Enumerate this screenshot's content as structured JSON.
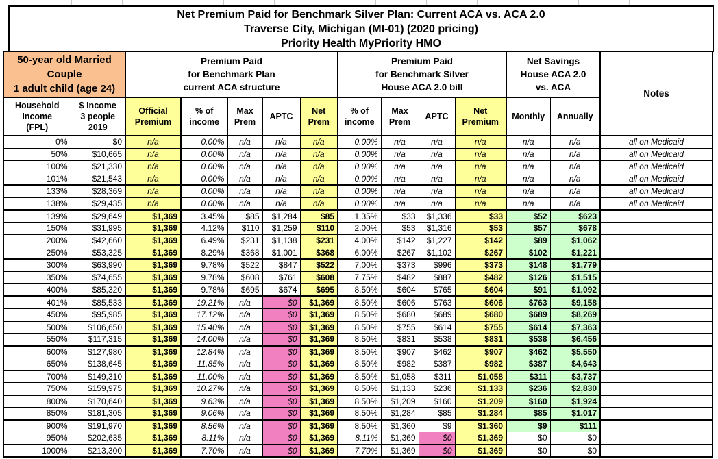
{
  "title": {
    "line1": "Net Premium Paid for Benchmark Silver Plan: Current ACA vs. ACA 2.0",
    "line2": "Traverse City, Michigan (MI-01) (2020 pricing)",
    "line3": "Priority Health MyPriority HMO"
  },
  "header": {
    "household": "50-year old Married Couple\n1 adult child (age 24)",
    "group_aca": "Premium Paid\nfor Benchmark Plan\ncurrent ACA structure",
    "group_aca2": "Premium Paid\nfor Benchmark Silver\nHouse ACA 2.0 bill",
    "group_savings": "Net Savings\nHouse ACA 2.0\nvs. ACA",
    "notes": "Notes"
  },
  "columns": [
    "Household\nIncome\n(FPL)",
    "$ Income\n3 people\n2019",
    "Official\nPremium",
    "% of\nincome",
    "Max\nPrem",
    "APTC",
    "Net\nPrem",
    "% of\nincome",
    "Max\nPrem",
    "APTC",
    "Net\nPremium",
    "Monthly",
    "Annually"
  ],
  "colors": {
    "orange": "#FAC090",
    "yellow": "#FFFF99",
    "pink": "#F080C0",
    "green": "#CCFFCC"
  },
  "rows": [
    {
      "band": "medicaid",
      "fpl": "0%",
      "income": "$0",
      "official": "n/a",
      "aca_pct": "0.00%",
      "aca_max": "n/a",
      "aca_aptc": "n/a",
      "aca_net": "n/a",
      "aca2_pct": "0.00%",
      "aca2_max": "n/a",
      "aca2_aptc": "n/a",
      "aca2_net": "n/a",
      "monthly": "n/a",
      "annually": "n/a",
      "notes": "all on Medicaid"
    },
    {
      "band": "medicaid",
      "fpl": "50%",
      "income": "$10,665",
      "official": "n/a",
      "aca_pct": "0.00%",
      "aca_max": "n/a",
      "aca_aptc": "n/a",
      "aca_net": "n/a",
      "aca2_pct": "0.00%",
      "aca2_max": "n/a",
      "aca2_aptc": "n/a",
      "aca2_net": "n/a",
      "monthly": "n/a",
      "annually": "n/a",
      "notes": "all on Medicaid"
    },
    {
      "band": "medicaid",
      "fpl": "100%",
      "income": "$21,330",
      "official": "n/a",
      "aca_pct": "0.00%",
      "aca_max": "n/a",
      "aca_aptc": "n/a",
      "aca_net": "n/a",
      "aca2_pct": "0.00%",
      "aca2_max": "n/a",
      "aca2_aptc": "n/a",
      "aca2_net": "n/a",
      "monthly": "n/a",
      "annually": "n/a",
      "notes": "all on Medicaid"
    },
    {
      "band": "medicaid",
      "fpl": "101%",
      "income": "$21,543",
      "official": "n/a",
      "aca_pct": "0.00%",
      "aca_max": "n/a",
      "aca_aptc": "n/a",
      "aca_net": "n/a",
      "aca2_pct": "0.00%",
      "aca2_max": "n/a",
      "aca2_aptc": "n/a",
      "aca2_net": "n/a",
      "monthly": "n/a",
      "annually": "n/a",
      "notes": "all on Medicaid"
    },
    {
      "band": "medicaid",
      "fpl": "133%",
      "income": "$28,369",
      "official": "n/a",
      "aca_pct": "0.00%",
      "aca_max": "n/a",
      "aca_aptc": "n/a",
      "aca_net": "n/a",
      "aca2_pct": "0.00%",
      "aca2_max": "n/a",
      "aca2_aptc": "n/a",
      "aca2_net": "n/a",
      "monthly": "n/a",
      "annually": "n/a",
      "notes": "all on Medicaid"
    },
    {
      "band": "medicaid",
      "fpl": "138%",
      "income": "$29,435",
      "official": "n/a",
      "aca_pct": "0.00%",
      "aca_max": "n/a",
      "aca_aptc": "n/a",
      "aca_net": "n/a",
      "aca2_pct": "0.00%",
      "aca2_max": "n/a",
      "aca2_aptc": "n/a",
      "aca2_net": "n/a",
      "monthly": "n/a",
      "annually": "n/a",
      "notes": "all on Medicaid"
    },
    {
      "band": "subsidized",
      "fpl": "139%",
      "income": "$29,649",
      "official": "$1,369",
      "aca_pct": "3.45%",
      "aca_max": "$85",
      "aca_aptc": "$1,284",
      "aca_net": "$85",
      "aca2_pct": "1.35%",
      "aca2_max": "$33",
      "aca2_aptc": "$1,336",
      "aca2_net": "$33",
      "monthly": "$52",
      "annually": "$623",
      "notes": ""
    },
    {
      "band": "subsidized",
      "fpl": "150%",
      "income": "$31,995",
      "official": "$1,369",
      "aca_pct": "4.12%",
      "aca_max": "$110",
      "aca_aptc": "$1,259",
      "aca_net": "$110",
      "aca2_pct": "2.00%",
      "aca2_max": "$53",
      "aca2_aptc": "$1,316",
      "aca2_net": "$53",
      "monthly": "$57",
      "annually": "$678",
      "notes": ""
    },
    {
      "band": "subsidized",
      "fpl": "200%",
      "income": "$42,660",
      "official": "$1,369",
      "aca_pct": "6.49%",
      "aca_max": "$231",
      "aca_aptc": "$1,138",
      "aca_net": "$231",
      "aca2_pct": "4.00%",
      "aca2_max": "$142",
      "aca2_aptc": "$1,227",
      "aca2_net": "$142",
      "monthly": "$89",
      "annually": "$1,062",
      "notes": ""
    },
    {
      "band": "subsidized",
      "fpl": "250%",
      "income": "$53,325",
      "official": "$1,369",
      "aca_pct": "8.29%",
      "aca_max": "$368",
      "aca_aptc": "$1,001",
      "aca_net": "$368",
      "aca2_pct": "6.00%",
      "aca2_max": "$267",
      "aca2_aptc": "$1,102",
      "aca2_net": "$267",
      "monthly": "$102",
      "annually": "$1,221",
      "notes": ""
    },
    {
      "band": "subsidized",
      "fpl": "300%",
      "income": "$63,990",
      "official": "$1,369",
      "aca_pct": "9.78%",
      "aca_max": "$522",
      "aca_aptc": "$847",
      "aca_net": "$522",
      "aca2_pct": "7.00%",
      "aca2_max": "$373",
      "aca2_aptc": "$996",
      "aca2_net": "$373",
      "monthly": "$148",
      "annually": "$1,779",
      "notes": ""
    },
    {
      "band": "subsidized",
      "fpl": "350%",
      "income": "$74,655",
      "official": "$1,369",
      "aca_pct": "9.78%",
      "aca_max": "$608",
      "aca_aptc": "$761",
      "aca_net": "$608",
      "aca2_pct": "7.75%",
      "aca2_max": "$482",
      "aca2_aptc": "$887",
      "aca2_net": "$482",
      "monthly": "$126",
      "annually": "$1,515",
      "notes": ""
    },
    {
      "band": "subsidized",
      "fpl": "400%",
      "income": "$85,320",
      "official": "$1,369",
      "aca_pct": "9.78%",
      "aca_max": "$695",
      "aca_aptc": "$674",
      "aca_net": "$695",
      "aca2_pct": "8.50%",
      "aca2_max": "$604",
      "aca2_aptc": "$765",
      "aca2_net": "$604",
      "monthly": "$91",
      "annually": "$1,092",
      "notes": ""
    },
    {
      "band": "cliff",
      "fpl": "401%",
      "income": "$85,533",
      "official": "$1,369",
      "aca_pct": "19.21%",
      "aca_max": "n/a",
      "aca_aptc": "$0",
      "aca_net": "$1,369",
      "aca2_pct": "8.50%",
      "aca2_max": "$606",
      "aca2_aptc": "$763",
      "aca2_net": "$606",
      "monthly": "$763",
      "annually": "$9,158",
      "notes": ""
    },
    {
      "band": "cliff",
      "fpl": "450%",
      "income": "$95,985",
      "official": "$1,369",
      "aca_pct": "17.12%",
      "aca_max": "n/a",
      "aca_aptc": "$0",
      "aca_net": "$1,369",
      "aca2_pct": "8.50%",
      "aca2_max": "$680",
      "aca2_aptc": "$689",
      "aca2_net": "$680",
      "monthly": "$689",
      "annually": "$8,269",
      "notes": ""
    },
    {
      "band": "cliff",
      "fpl": "500%",
      "income": "$106,650",
      "official": "$1,369",
      "aca_pct": "15.40%",
      "aca_max": "n/a",
      "aca_aptc": "$0",
      "aca_net": "$1,369",
      "aca2_pct": "8.50%",
      "aca2_max": "$755",
      "aca2_aptc": "$614",
      "aca2_net": "$755",
      "monthly": "$614",
      "annually": "$7,363",
      "notes": ""
    },
    {
      "band": "cliff",
      "fpl": "550%",
      "income": "$117,315",
      "official": "$1,369",
      "aca_pct": "14.00%",
      "aca_max": "n/a",
      "aca_aptc": "$0",
      "aca_net": "$1,369",
      "aca2_pct": "8.50%",
      "aca2_max": "$831",
      "aca2_aptc": "$538",
      "aca2_net": "$831",
      "monthly": "$538",
      "annually": "$6,456",
      "notes": ""
    },
    {
      "band": "cliff",
      "fpl": "600%",
      "income": "$127,980",
      "official": "$1,369",
      "aca_pct": "12.84%",
      "aca_max": "n/a",
      "aca_aptc": "$0",
      "aca_net": "$1,369",
      "aca2_pct": "8.50%",
      "aca2_max": "$907",
      "aca2_aptc": "$462",
      "aca2_net": "$907",
      "monthly": "$462",
      "annually": "$5,550",
      "notes": ""
    },
    {
      "band": "cliff",
      "fpl": "650%",
      "income": "$138,645",
      "official": "$1,369",
      "aca_pct": "11.85%",
      "aca_max": "n/a",
      "aca_aptc": "$0",
      "aca_net": "$1,369",
      "aca2_pct": "8.50%",
      "aca2_max": "$982",
      "aca2_aptc": "$387",
      "aca2_net": "$982",
      "monthly": "$387",
      "annually": "$4,643",
      "notes": ""
    },
    {
      "band": "cliff",
      "fpl": "700%",
      "income": "$149,310",
      "official": "$1,369",
      "aca_pct": "11.00%",
      "aca_max": "n/a",
      "aca_aptc": "$0",
      "aca_net": "$1,369",
      "aca2_pct": "8.50%",
      "aca2_max": "$1,058",
      "aca2_aptc": "$311",
      "aca2_net": "$1,058",
      "monthly": "$311",
      "annually": "$3,737",
      "notes": ""
    },
    {
      "band": "cliff",
      "fpl": "750%",
      "income": "$159,975",
      "official": "$1,369",
      "aca_pct": "10.27%",
      "aca_max": "n/a",
      "aca_aptc": "$0",
      "aca_net": "$1,369",
      "aca2_pct": "8.50%",
      "aca2_max": "$1,133",
      "aca2_aptc": "$236",
      "aca2_net": "$1,133",
      "monthly": "$236",
      "annually": "$2,830",
      "notes": ""
    },
    {
      "band": "cliff",
      "fpl": "800%",
      "income": "$170,640",
      "official": "$1,369",
      "aca_pct": "9.63%",
      "aca_max": "n/a",
      "aca_aptc": "$0",
      "aca_net": "$1,369",
      "aca2_pct": "8.50%",
      "aca2_max": "$1,209",
      "aca2_aptc": "$160",
      "aca2_net": "$1,209",
      "monthly": "$160",
      "annually": "$1,924",
      "notes": ""
    },
    {
      "band": "cliff",
      "fpl": "850%",
      "income": "$181,305",
      "official": "$1,369",
      "aca_pct": "9.06%",
      "aca_max": "n/a",
      "aca_aptc": "$0",
      "aca_net": "$1,369",
      "aca2_pct": "8.50%",
      "aca2_max": "$1,284",
      "aca2_aptc": "$85",
      "aca2_net": "$1,284",
      "monthly": "$85",
      "annually": "$1,017",
      "notes": ""
    },
    {
      "band": "cliff",
      "fpl": "900%",
      "income": "$191,970",
      "official": "$1,369",
      "aca_pct": "8.56%",
      "aca_max": "n/a",
      "aca_aptc": "$0",
      "aca_net": "$1,369",
      "aca2_pct": "8.50%",
      "aca2_max": "$1,360",
      "aca2_aptc": "$9",
      "aca2_net": "$1,360",
      "monthly": "$9",
      "annually": "$111",
      "notes": ""
    },
    {
      "band": "overcap",
      "fpl": "950%",
      "income": "$202,635",
      "official": "$1,369",
      "aca_pct": "8.11%",
      "aca_max": "n/a",
      "aca_aptc": "$0",
      "aca_net": "$1,369",
      "aca2_pct": "8.11%",
      "aca2_max": "$1,369",
      "aca2_aptc": "$0",
      "aca2_net": "$1,369",
      "monthly": "$0",
      "annually": "$0",
      "notes": ""
    },
    {
      "band": "overcap",
      "fpl": "1000%",
      "income": "$213,300",
      "official": "$1,369",
      "aca_pct": "7.70%",
      "aca_max": "n/a",
      "aca_aptc": "$0",
      "aca_net": "$1,369",
      "aca2_pct": "7.70%",
      "aca2_max": "$1,369",
      "aca2_aptc": "$0",
      "aca2_net": "$1,369",
      "monthly": "$0",
      "annually": "$0",
      "notes": ""
    }
  ]
}
